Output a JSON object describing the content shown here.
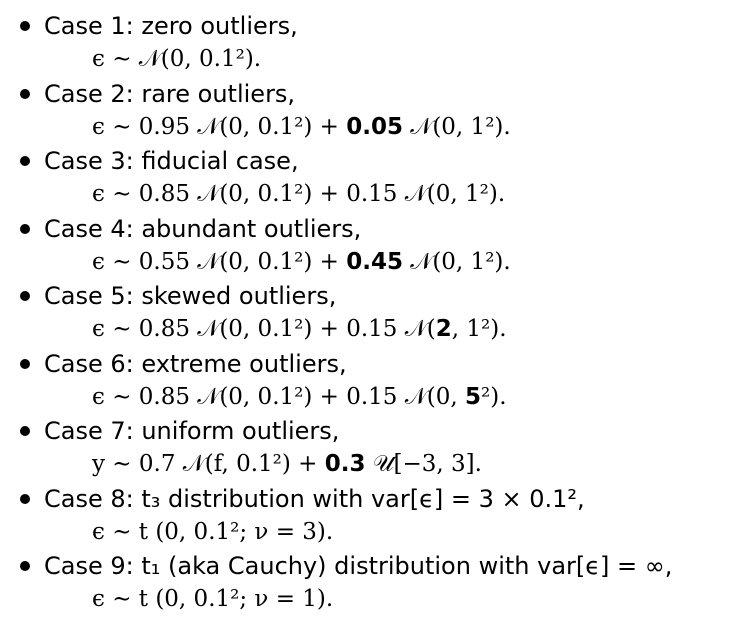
{
  "cases": [
    {
      "title": "Case 1: zero outliers,",
      "formula": [
        "ϵ ∼ 𝒩(0,  0.1²)."
      ]
    },
    {
      "title": "Case 2: rare outliers,",
      "formula_parts": {
        "lhs": "ϵ ∼ 0.95 𝒩(0,  0.1²) + ",
        "bold": "0.05",
        "rhs": " 𝒩(0,  1²)."
      }
    },
    {
      "title": "Case 3: fiducial case,",
      "formula_text": "ϵ ∼ 0.85 𝒩(0,  0.1²) + 0.15 𝒩(0,  1²)."
    },
    {
      "title": "Case 4: abundant outliers,",
      "formula_parts": {
        "lhs": "ϵ ∼ 0.55 𝒩(0,  0.1²) + ",
        "bold": "0.45",
        "rhs": " 𝒩(0,  1²)."
      }
    },
    {
      "title": "Case 5: skewed outliers,",
      "formula_parts": {
        "lhs": "ϵ ∼ 0.85 𝒩(0,  0.1²) + 0.15 𝒩(",
        "bold": "2",
        "rhs": ",  1²)."
      }
    },
    {
      "title": "Case 6: extreme outliers,",
      "formula_parts": {
        "lhs": "ϵ ∼ 0.85 𝒩(0,  0.1²) + 0.15 𝒩(0,  ",
        "bold": "5",
        "rhs": "²)."
      }
    },
    {
      "title": "Case 7: uniform outliers,",
      "formula_parts": {
        "lhs": "y ∼ 0.7 𝒩(f,  0.1²) + ",
        "bold": "0.3",
        "rhs": " 𝒰[−3,  3]."
      }
    },
    {
      "title": "Case 8: t₃ distribution with var[ϵ] = 3 × 0.1²,",
      "formula_text": "ϵ ∼ t (0,  0.1²; ν = 3)."
    },
    {
      "title": "Case 9: t₁ (aka Cauchy) distribution with var[ϵ] = ∞,",
      "formula_text": "ϵ ∼ t (0,  0.1²; ν = 1)."
    }
  ]
}
